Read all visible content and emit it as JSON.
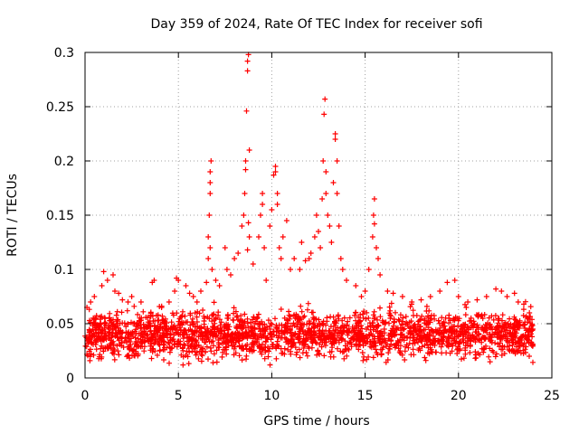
{
  "chart_data": {
    "type": "scatter",
    "title": "Day 359 of 2024, Rate Of TEC Index for receiver sofi",
    "xlabel": "GPS time / hours",
    "ylabel": "ROTI / TECUs",
    "xlim": [
      0,
      25
    ],
    "ylim": [
      0,
      0.3
    ],
    "xticks": [
      0,
      5,
      10,
      15,
      20,
      25
    ],
    "yticks": [
      0,
      0.05,
      0.1,
      0.15,
      0.2,
      0.25,
      0.3
    ],
    "xtick_labels": [
      "0",
      "5",
      "10",
      "15",
      "20",
      "25"
    ],
    "ytick_labels": [
      "0",
      "0.05",
      "0.1",
      "0.15",
      "0.2",
      "0.25",
      "0.3"
    ],
    "grid": true,
    "marker": "+",
    "series": [
      {
        "name": "ROTI",
        "color": "#ff0000",
        "background_band": {
          "x_range": [
            0,
            24
          ],
          "typical_low": 0.02,
          "typical_high": 0.06,
          "typical_center": 0.04
        },
        "points": [
          [
            0.1,
            0.065
          ],
          [
            0.3,
            0.07
          ],
          [
            0.5,
            0.075
          ],
          [
            0.9,
            0.085
          ],
          [
            1.0,
            0.098
          ],
          [
            1.2,
            0.09
          ],
          [
            1.5,
            0.095
          ],
          [
            1.6,
            0.08
          ],
          [
            1.8,
            0.078
          ],
          [
            2.0,
            0.072
          ],
          [
            2.3,
            0.07
          ],
          [
            2.5,
            0.075
          ],
          [
            3.0,
            0.07
          ],
          [
            3.6,
            0.088
          ],
          [
            3.7,
            0.09
          ],
          [
            4.1,
            0.065
          ],
          [
            4.5,
            0.07
          ],
          [
            4.8,
            0.08
          ],
          [
            4.9,
            0.092
          ],
          [
            5.0,
            0.09
          ],
          [
            5.4,
            0.085
          ],
          [
            5.6,
            0.078
          ],
          [
            5.8,
            0.075
          ],
          [
            6.0,
            0.07
          ],
          [
            6.2,
            0.08
          ],
          [
            6.5,
            0.088
          ],
          [
            6.6,
            0.11
          ],
          [
            6.6,
            0.13
          ],
          [
            6.65,
            0.15
          ],
          [
            6.7,
            0.17
          ],
          [
            6.7,
            0.18
          ],
          [
            6.7,
            0.19
          ],
          [
            6.75,
            0.2
          ],
          [
            6.7,
            0.12
          ],
          [
            6.8,
            0.1
          ],
          [
            7.0,
            0.09
          ],
          [
            7.2,
            0.085
          ],
          [
            7.5,
            0.12
          ],
          [
            7.6,
            0.1
          ],
          [
            7.8,
            0.095
          ],
          [
            8.0,
            0.11
          ],
          [
            8.2,
            0.115
          ],
          [
            8.4,
            0.14
          ],
          [
            8.5,
            0.15
          ],
          [
            8.55,
            0.17
          ],
          [
            8.6,
            0.192
          ],
          [
            8.6,
            0.2
          ],
          [
            8.65,
            0.246
          ],
          [
            8.7,
            0.283
          ],
          [
            8.7,
            0.292
          ],
          [
            8.75,
            0.298
          ],
          [
            8.8,
            0.21
          ],
          [
            8.75,
            0.143
          ],
          [
            8.8,
            0.13
          ],
          [
            8.7,
            0.118
          ],
          [
            9.0,
            0.105
          ],
          [
            9.3,
            0.13
          ],
          [
            9.4,
            0.15
          ],
          [
            9.5,
            0.17
          ],
          [
            9.5,
            0.16
          ],
          [
            9.6,
            0.12
          ],
          [
            9.7,
            0.09
          ],
          [
            9.9,
            0.14
          ],
          [
            10.0,
            0.155
          ],
          [
            10.1,
            0.187
          ],
          [
            10.2,
            0.195
          ],
          [
            10.2,
            0.19
          ],
          [
            10.3,
            0.16
          ],
          [
            10.3,
            0.17
          ],
          [
            10.4,
            0.12
          ],
          [
            10.5,
            0.11
          ],
          [
            10.6,
            0.13
          ],
          [
            10.8,
            0.145
          ],
          [
            11.0,
            0.1
          ],
          [
            11.2,
            0.11
          ],
          [
            11.5,
            0.1
          ],
          [
            11.6,
            0.125
          ],
          [
            11.8,
            0.108
          ],
          [
            12.0,
            0.11
          ],
          [
            12.1,
            0.115
          ],
          [
            12.3,
            0.13
          ],
          [
            12.4,
            0.15
          ],
          [
            12.5,
            0.135
          ],
          [
            12.6,
            0.12
          ],
          [
            12.7,
            0.165
          ],
          [
            12.75,
            0.2
          ],
          [
            12.8,
            0.243
          ],
          [
            12.85,
            0.257
          ],
          [
            12.9,
            0.19
          ],
          [
            12.9,
            0.17
          ],
          [
            13.0,
            0.15
          ],
          [
            13.1,
            0.14
          ],
          [
            13.2,
            0.125
          ],
          [
            13.3,
            0.18
          ],
          [
            13.4,
            0.22
          ],
          [
            13.4,
            0.225
          ],
          [
            13.5,
            0.2
          ],
          [
            13.5,
            0.17
          ],
          [
            13.6,
            0.14
          ],
          [
            13.7,
            0.11
          ],
          [
            13.8,
            0.1
          ],
          [
            14.0,
            0.09
          ],
          [
            14.5,
            0.085
          ],
          [
            14.8,
            0.075
          ],
          [
            15.0,
            0.08
          ],
          [
            15.2,
            0.1
          ],
          [
            15.4,
            0.13
          ],
          [
            15.45,
            0.15
          ],
          [
            15.5,
            0.165
          ],
          [
            15.5,
            0.142
          ],
          [
            15.6,
            0.12
          ],
          [
            15.7,
            0.11
          ],
          [
            15.8,
            0.095
          ],
          [
            16.2,
            0.08
          ],
          [
            16.5,
            0.078
          ],
          [
            17.0,
            0.075
          ],
          [
            17.5,
            0.07
          ],
          [
            18.0,
            0.072
          ],
          [
            18.5,
            0.075
          ],
          [
            19.0,
            0.08
          ],
          [
            19.4,
            0.088
          ],
          [
            19.8,
            0.09
          ],
          [
            20.0,
            0.075
          ],
          [
            20.5,
            0.07
          ],
          [
            21.0,
            0.072
          ],
          [
            21.5,
            0.075
          ],
          [
            22.0,
            0.082
          ],
          [
            22.3,
            0.08
          ],
          [
            22.6,
            0.075
          ],
          [
            23.0,
            0.078
          ],
          [
            23.2,
            0.07
          ],
          [
            23.5,
            0.068
          ],
          [
            23.8,
            0.06
          ]
        ]
      }
    ]
  }
}
